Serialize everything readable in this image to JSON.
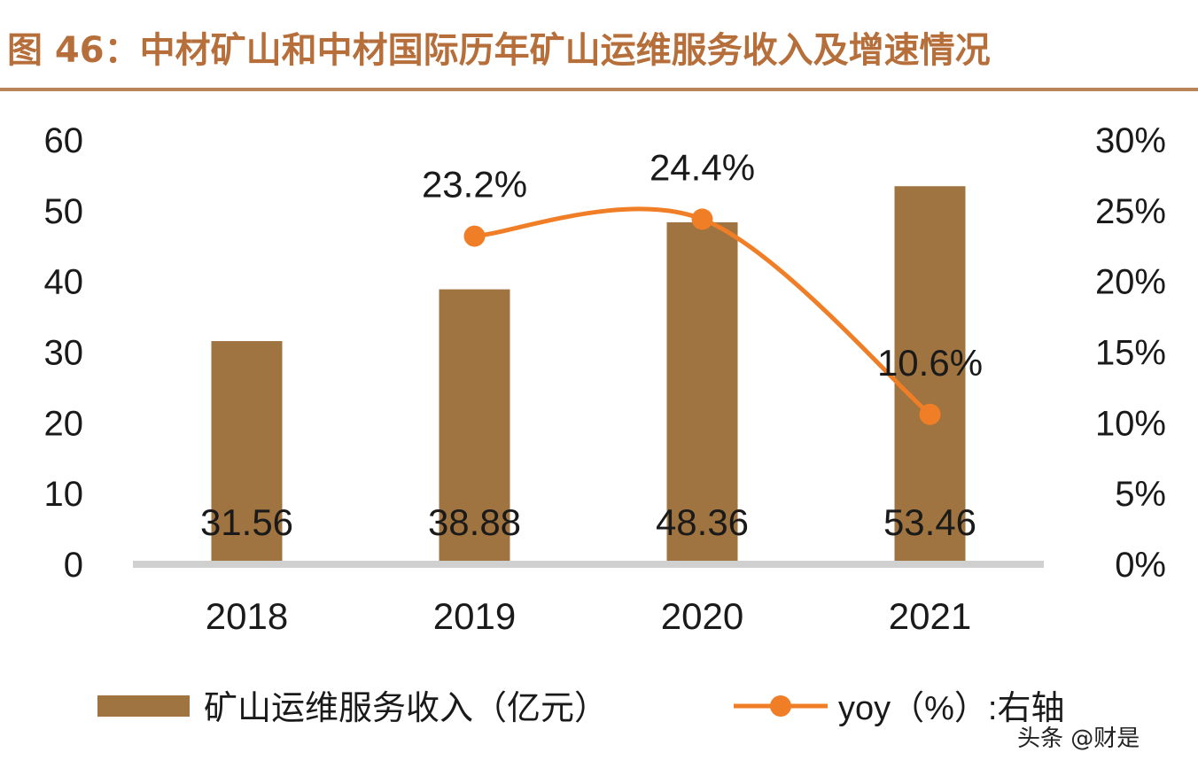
{
  "title": "图 46：中材矿山和中材国际历年矿山运维服务收入及增速情况",
  "colors": {
    "title": "#b66f3a",
    "rule": "#b98458",
    "bar": "#9f7440",
    "line": "#f07e26",
    "axis": "#d0d0d0",
    "text": "#1a1a1a"
  },
  "chart_data": {
    "type": "bar",
    "categories": [
      "2018",
      "2019",
      "2020",
      "2021"
    ],
    "series": [
      {
        "name": "矿山运维服务收入（亿元）",
        "type": "bar",
        "axis": "left",
        "values": [
          31.56,
          38.88,
          48.36,
          53.46
        ],
        "labels": [
          "31.56",
          "38.88",
          "48.36",
          "53.46"
        ]
      },
      {
        "name": "yoy（%）:右轴",
        "type": "line",
        "axis": "right",
        "values": [
          null,
          23.2,
          24.4,
          10.6
        ],
        "labels": [
          "",
          "23.2%",
          "24.4%",
          "10.6%"
        ]
      }
    ],
    "ylim_left": [
      0,
      60
    ],
    "yticks_left": [
      "0",
      "10",
      "20",
      "30",
      "40",
      "50",
      "60"
    ],
    "ylim_right": [
      0,
      30
    ],
    "yticks_right": [
      "0%",
      "5%",
      "10%",
      "15%",
      "20%",
      "25%",
      "30%"
    ],
    "grid": false,
    "legend": "bottom"
  },
  "watermark": "头条 @财是"
}
